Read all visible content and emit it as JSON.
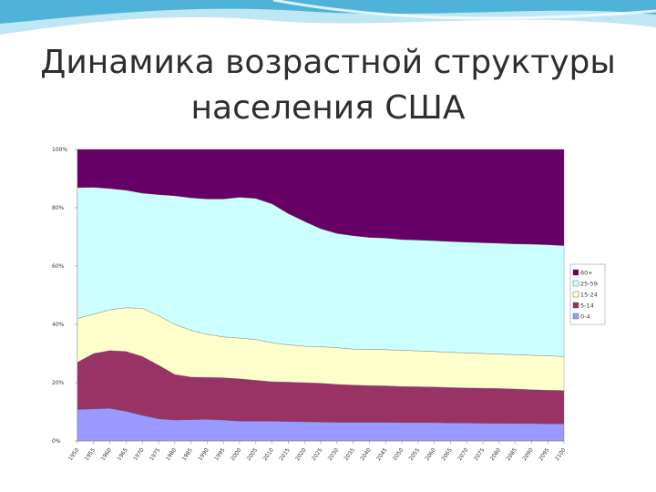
{
  "slide": {
    "title_line1": "Динамика возрастной структуры",
    "title_line2": "населения США"
  },
  "colors": {
    "swoosh_dark": "#4fb3d9",
    "swoosh_light": "#bfe6f5"
  },
  "chart_data": {
    "type": "area",
    "stacked": true,
    "title": "",
    "xlabel": "",
    "ylabel": "",
    "ylim": [
      0,
      100
    ],
    "y_ticks": [
      "0%",
      "20%",
      "40%",
      "60%",
      "80%",
      "100%"
    ],
    "x": [
      "1950",
      "1955",
      "1960",
      "1965",
      "1970",
      "1975",
      "1980",
      "1985",
      "1990",
      "1995",
      "2000",
      "2005",
      "2010",
      "2015",
      "2020",
      "2025",
      "2030",
      "2035",
      "2040",
      "2045",
      "2050",
      "2055",
      "2060",
      "2065",
      "2070",
      "2075",
      "2080",
      "2085",
      "2090",
      "2095",
      "2100"
    ],
    "x_tick_labels": [
      "1950",
      "1955",
      "1960",
      "1965",
      "1970",
      "1975",
      "1980",
      "1985",
      "1990",
      "1995",
      "2000",
      "2005",
      "2010",
      "2015",
      "2020",
      "2025",
      "2030",
      "2035",
      "2040",
      "2045",
      "2050",
      "2055",
      "2060",
      "2065",
      "2070",
      "2075",
      "2080",
      "2085",
      "2090",
      "2095",
      "2100"
    ],
    "legend_position": "right",
    "grid": false,
    "series": [
      {
        "name": "0-4",
        "color": "#9999ff",
        "values": [
          10.8,
          11.0,
          11.2,
          10.2,
          8.8,
          7.6,
          7.2,
          7.3,
          7.4,
          7.2,
          6.8,
          6.8,
          6.8,
          6.7,
          6.6,
          6.5,
          6.4,
          6.4,
          6.4,
          6.4,
          6.3,
          6.3,
          6.3,
          6.2,
          6.2,
          6.1,
          6.1,
          6.0,
          6.0,
          5.9,
          5.9
        ]
      },
      {
        "name": "5-14",
        "color": "#993366",
        "values": [
          16.2,
          19.0,
          19.8,
          20.5,
          20.2,
          18.4,
          15.6,
          14.6,
          14.4,
          14.5,
          14.5,
          14.0,
          13.5,
          13.5,
          13.4,
          13.3,
          13.0,
          12.8,
          12.6,
          12.5,
          12.4,
          12.3,
          12.2,
          12.1,
          12.0,
          12.0,
          11.9,
          11.8,
          11.6,
          11.5,
          11.4
        ]
      },
      {
        "name": "15-24",
        "color": "#ffffcc",
        "values": [
          15.0,
          13.5,
          14.0,
          15.0,
          16.5,
          17.0,
          17.2,
          16.1,
          14.8,
          14.0,
          14.0,
          14.0,
          13.4,
          12.8,
          12.5,
          12.5,
          12.6,
          12.3,
          12.4,
          12.4,
          12.4,
          12.3,
          12.2,
          12.1,
          12.0,
          11.9,
          11.8,
          11.8,
          11.8,
          11.8,
          11.7
        ]
      },
      {
        "name": "25-59",
        "color": "#ccffff",
        "values": [
          44.9,
          43.5,
          41.6,
          40.3,
          39.5,
          41.5,
          44.1,
          45.4,
          46.4,
          47.3,
          48.3,
          48.4,
          47.6,
          45.0,
          42.8,
          40.5,
          39.2,
          38.9,
          38.4,
          38.3,
          38.0,
          38.0,
          38.0,
          38.0,
          38.0,
          38.0,
          38.0,
          38.0,
          38.1,
          38.1,
          38.0
        ]
      },
      {
        "name": "60+",
        "color": "#660066",
        "values": [
          13.1,
          13.0,
          13.4,
          14.0,
          15.0,
          15.5,
          15.9,
          16.6,
          17.0,
          17.0,
          16.4,
          16.8,
          18.7,
          22.0,
          24.7,
          27.2,
          28.8,
          29.6,
          30.2,
          30.4,
          30.9,
          31.1,
          31.3,
          31.6,
          31.8,
          32.0,
          32.2,
          32.4,
          32.5,
          32.7,
          33.0
        ]
      }
    ]
  }
}
